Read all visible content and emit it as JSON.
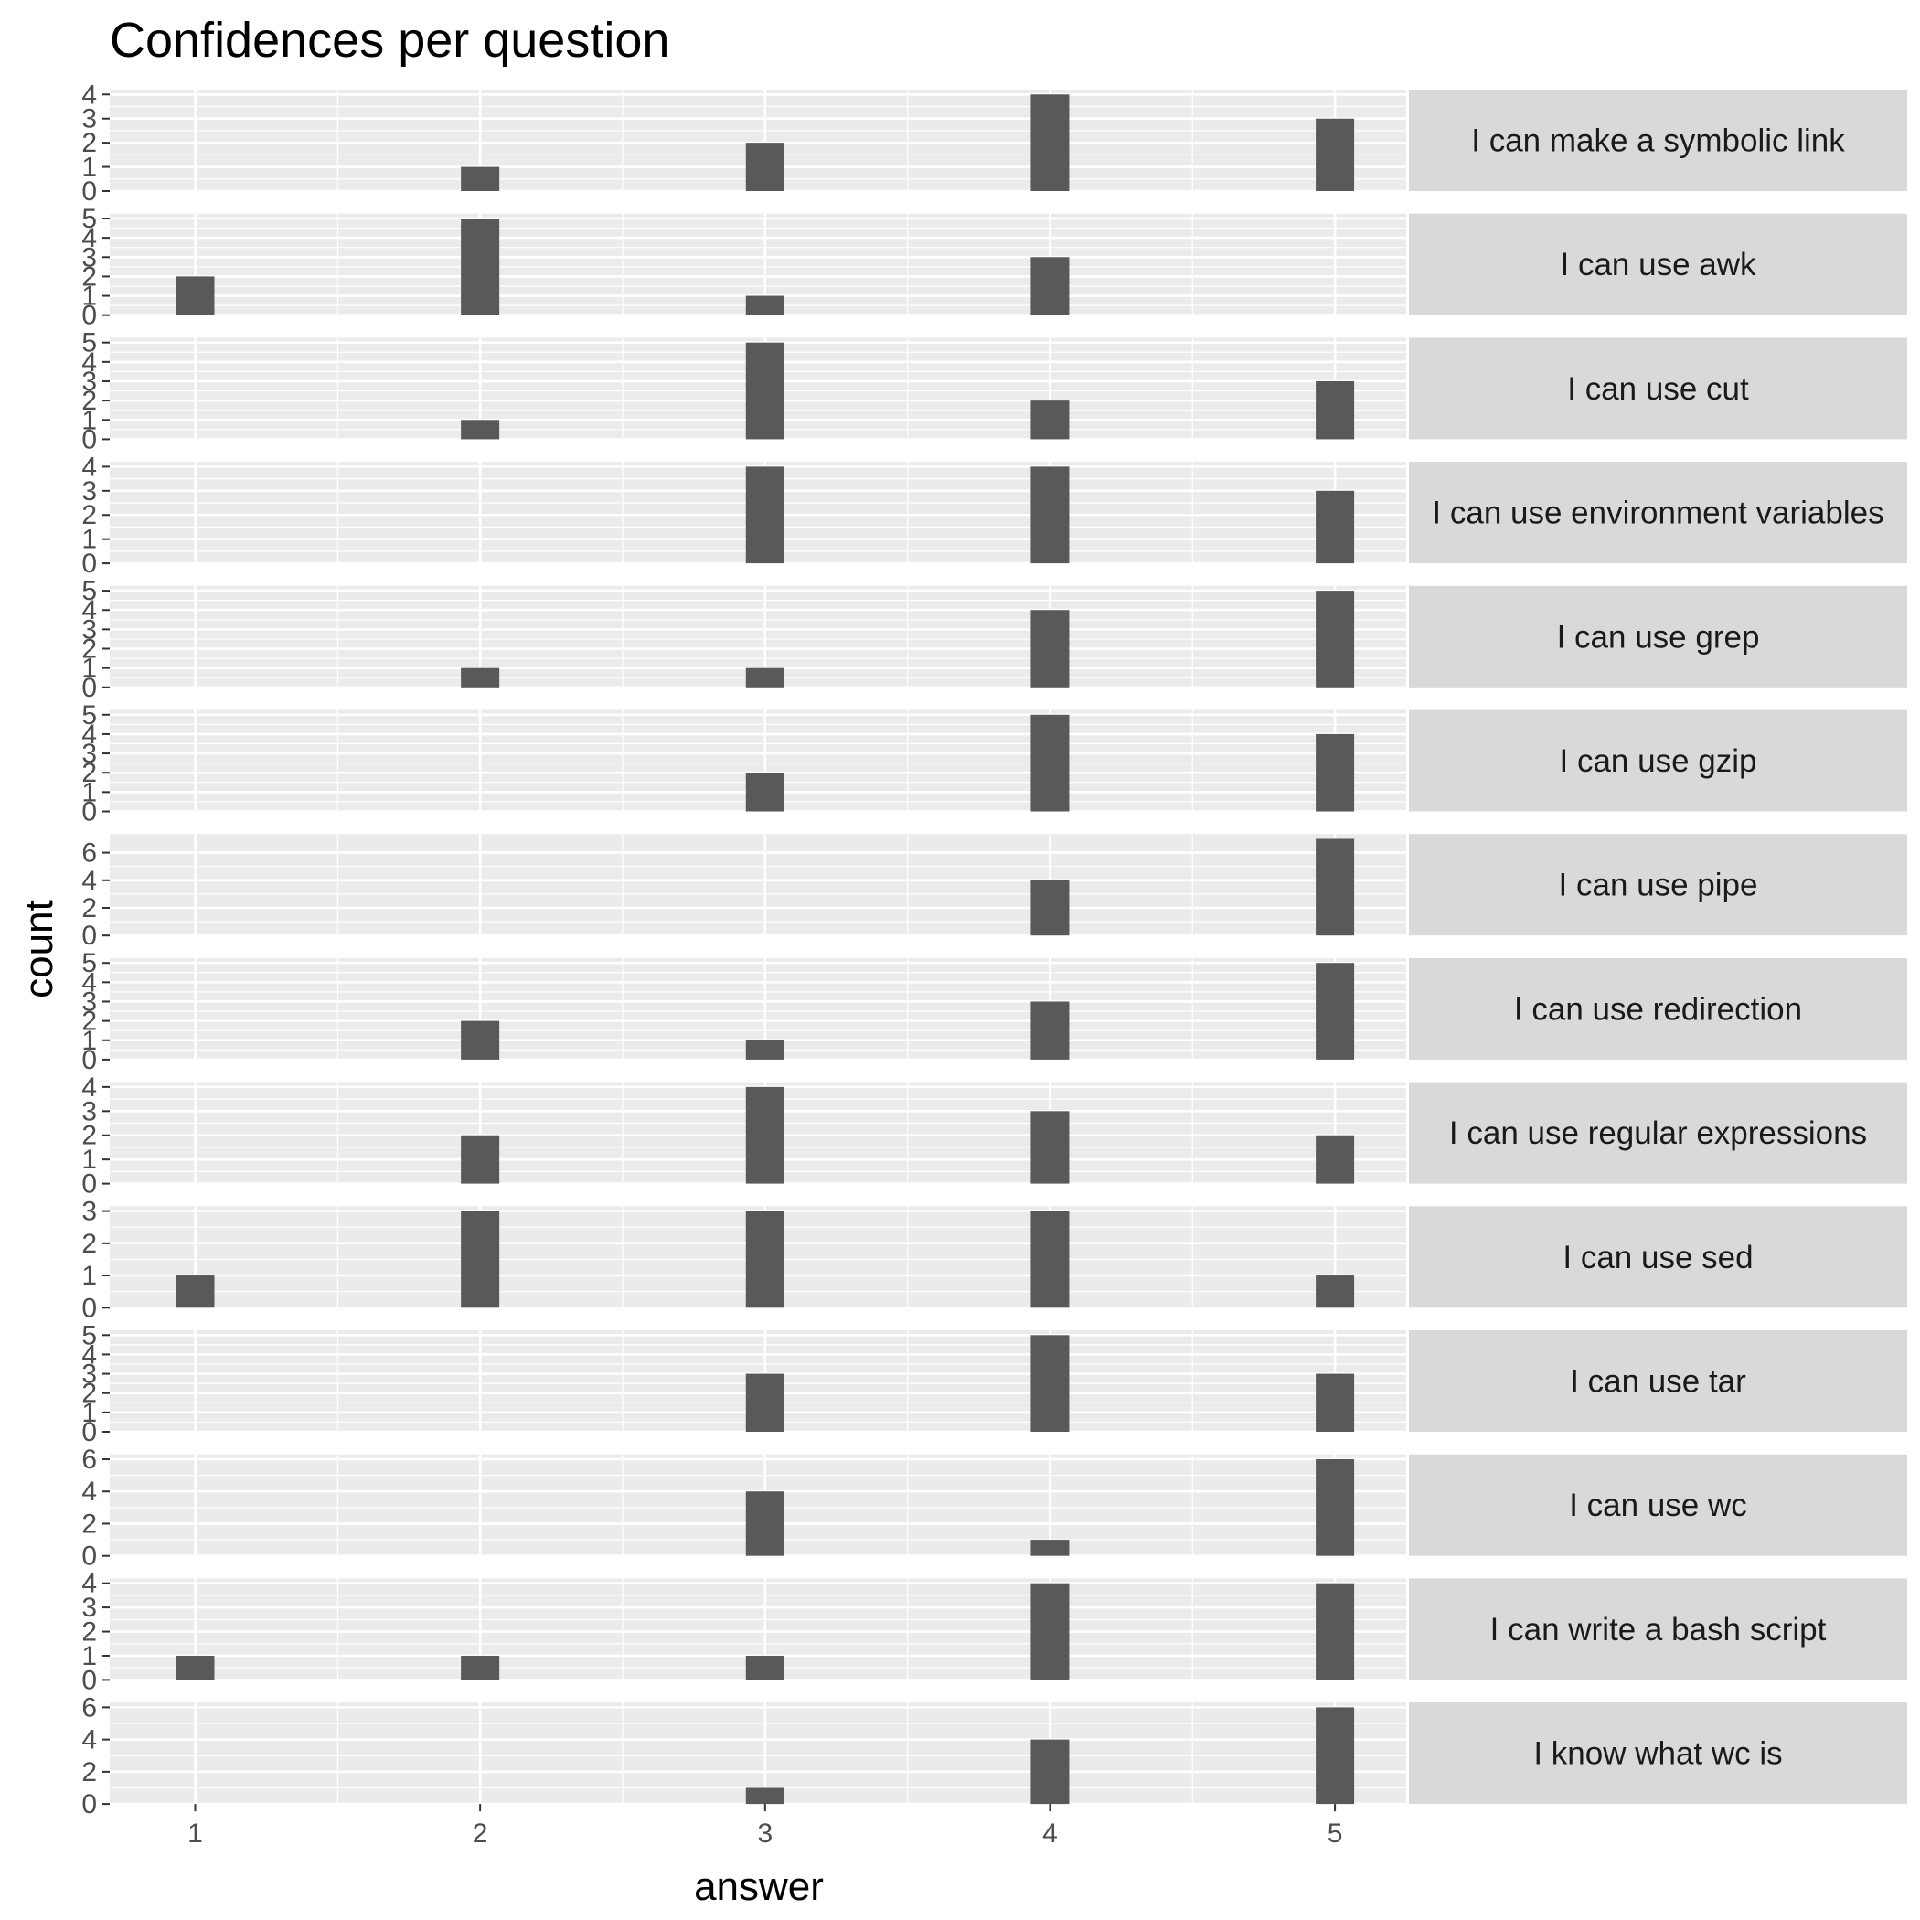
{
  "chart_data": {
    "type": "bar",
    "title": "Confidences per question",
    "xlabel": "answer",
    "ylabel": "count",
    "x_ticks": [
      "1",
      "2",
      "3",
      "4",
      "5"
    ],
    "xlim": [
      0.7,
      5.25
    ],
    "grid": true,
    "facet_layout": "vertical panels with strip labels on the right",
    "colors": {
      "bar": "#595959",
      "panel_background": "#ebebeb",
      "strip_background": "#d9d9d9",
      "grid": "#ffffff"
    },
    "panels": [
      {
        "label": "I can make a symbolic link",
        "y_ticks": [
          0,
          1,
          2,
          3,
          4
        ],
        "ylim": [
          0,
          4.2
        ],
        "bars": [
          {
            "x": 2,
            "y": 1
          },
          {
            "x": 3,
            "y": 2
          },
          {
            "x": 4,
            "y": 4
          },
          {
            "x": 5,
            "y": 3
          }
        ]
      },
      {
        "label": "I can use awk",
        "y_ticks": [
          0,
          1,
          2,
          3,
          4,
          5
        ],
        "ylim": [
          0,
          5.25
        ],
        "bars": [
          {
            "x": 1,
            "y": 2
          },
          {
            "x": 2,
            "y": 5
          },
          {
            "x": 3,
            "y": 1
          },
          {
            "x": 4,
            "y": 3
          }
        ]
      },
      {
        "label": "I can use cut",
        "y_ticks": [
          0,
          1,
          2,
          3,
          4,
          5
        ],
        "ylim": [
          0,
          5.25
        ],
        "bars": [
          {
            "x": 2,
            "y": 1
          },
          {
            "x": 3,
            "y": 5
          },
          {
            "x": 4,
            "y": 2
          },
          {
            "x": 5,
            "y": 3
          }
        ]
      },
      {
        "label": "I can use environment variables",
        "y_ticks": [
          0,
          1,
          2,
          3,
          4
        ],
        "ylim": [
          0,
          4.2
        ],
        "bars": [
          {
            "x": 3,
            "y": 4
          },
          {
            "x": 4,
            "y": 4
          },
          {
            "x": 5,
            "y": 3
          }
        ]
      },
      {
        "label": "I can use grep",
        "y_ticks": [
          0,
          1,
          2,
          3,
          4,
          5
        ],
        "ylim": [
          0,
          5.25
        ],
        "bars": [
          {
            "x": 2,
            "y": 1
          },
          {
            "x": 3,
            "y": 1
          },
          {
            "x": 4,
            "y": 4
          },
          {
            "x": 5,
            "y": 5
          }
        ]
      },
      {
        "label": "I can use gzip",
        "y_ticks": [
          0,
          1,
          2,
          3,
          4,
          5
        ],
        "ylim": [
          0,
          5.25
        ],
        "bars": [
          {
            "x": 3,
            "y": 2
          },
          {
            "x": 4,
            "y": 5
          },
          {
            "x": 5,
            "y": 4
          }
        ]
      },
      {
        "label": "I can use pipe",
        "y_ticks": [
          0,
          2,
          4,
          6
        ],
        "ylim": [
          0,
          7.35
        ],
        "bars": [
          {
            "x": 4,
            "y": 4
          },
          {
            "x": 5,
            "y": 7
          }
        ]
      },
      {
        "label": "I can use redirection",
        "y_ticks": [
          0,
          1,
          2,
          3,
          4,
          5
        ],
        "ylim": [
          0,
          5.25
        ],
        "bars": [
          {
            "x": 2,
            "y": 2
          },
          {
            "x": 3,
            "y": 1
          },
          {
            "x": 4,
            "y": 3
          },
          {
            "x": 5,
            "y": 5
          }
        ]
      },
      {
        "label": "I can use regular expressions",
        "y_ticks": [
          0,
          1,
          2,
          3,
          4
        ],
        "ylim": [
          0,
          4.2
        ],
        "bars": [
          {
            "x": 2,
            "y": 2
          },
          {
            "x": 3,
            "y": 4
          },
          {
            "x": 4,
            "y": 3
          },
          {
            "x": 5,
            "y": 2
          }
        ]
      },
      {
        "label": "I can use sed",
        "y_ticks": [
          0,
          1,
          2,
          3
        ],
        "ylim": [
          0,
          3.15
        ],
        "bars": [
          {
            "x": 1,
            "y": 1
          },
          {
            "x": 2,
            "y": 3
          },
          {
            "x": 3,
            "y": 3
          },
          {
            "x": 4,
            "y": 3
          },
          {
            "x": 5,
            "y": 1
          }
        ]
      },
      {
        "label": "I can use tar",
        "y_ticks": [
          0,
          1,
          2,
          3,
          4,
          5
        ],
        "ylim": [
          0,
          5.25
        ],
        "bars": [
          {
            "x": 3,
            "y": 3
          },
          {
            "x": 4,
            "y": 5
          },
          {
            "x": 5,
            "y": 3
          }
        ]
      },
      {
        "label": "I can use wc",
        "y_ticks": [
          0,
          2,
          4,
          6
        ],
        "ylim": [
          0,
          6.3
        ],
        "bars": [
          {
            "x": 3,
            "y": 4
          },
          {
            "x": 4,
            "y": 1
          },
          {
            "x": 5,
            "y": 6
          }
        ]
      },
      {
        "label": "I can write a bash script",
        "y_ticks": [
          0,
          1,
          2,
          3,
          4
        ],
        "ylim": [
          0,
          4.2
        ],
        "bars": [
          {
            "x": 1,
            "y": 1
          },
          {
            "x": 2,
            "y": 1
          },
          {
            "x": 3,
            "y": 1
          },
          {
            "x": 4,
            "y": 4
          },
          {
            "x": 5,
            "y": 4
          }
        ]
      },
      {
        "label": "I know what wc is",
        "y_ticks": [
          0,
          2,
          4,
          6
        ],
        "ylim": [
          0,
          6.3
        ],
        "bars": [
          {
            "x": 3,
            "y": 1
          },
          {
            "x": 4,
            "y": 4
          },
          {
            "x": 5,
            "y": 6
          }
        ]
      }
    ]
  }
}
